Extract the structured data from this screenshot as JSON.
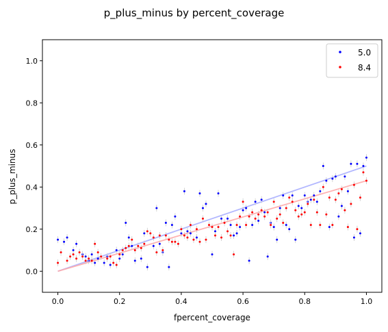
{
  "chart_data": {
    "type": "scatter",
    "title": "p_plus_minus by percent_coverage",
    "xlabel": "fpercent_coverage",
    "ylabel": "p_plus_minus",
    "xlim": [
      -0.05,
      1.05
    ],
    "ylim": [
      -0.1,
      1.1
    ],
    "x_ticks": [
      0.0,
      0.2,
      0.4,
      0.6,
      0.8,
      1.0
    ],
    "x_tick_labels": [
      "0.0",
      "0.2",
      "0.4",
      "0.6",
      "0.8",
      "1.0"
    ],
    "y_ticks": [
      0.0,
      0.2,
      0.4,
      0.6,
      0.8,
      1.0
    ],
    "y_tick_labels": [
      "0.0",
      "0.2",
      "0.4",
      "0.6",
      "0.8",
      "1.0"
    ],
    "legend_position": "top-right",
    "series": [
      {
        "name": "5.0",
        "color": "#0000ff",
        "fit_line": {
          "x": [
            0.0,
            1.0
          ],
          "y": [
            0.0,
            0.5
          ],
          "color": "#aab0ff"
        },
        "x": [
          0.0,
          0.02,
          0.03,
          0.05,
          0.06,
          0.08,
          0.09,
          0.1,
          0.11,
          0.12,
          0.13,
          0.15,
          0.16,
          0.17,
          0.19,
          0.2,
          0.21,
          0.22,
          0.23,
          0.24,
          0.25,
          0.27,
          0.28,
          0.29,
          0.31,
          0.32,
          0.33,
          0.34,
          0.35,
          0.36,
          0.37,
          0.38,
          0.4,
          0.41,
          0.42,
          0.43,
          0.45,
          0.46,
          0.47,
          0.48,
          0.5,
          0.51,
          0.52,
          0.53,
          0.55,
          0.56,
          0.57,
          0.58,
          0.59,
          0.6,
          0.61,
          0.62,
          0.63,
          0.64,
          0.65,
          0.66,
          0.67,
          0.68,
          0.69,
          0.7,
          0.71,
          0.72,
          0.73,
          0.74,
          0.75,
          0.76,
          0.77,
          0.78,
          0.79,
          0.8,
          0.81,
          0.82,
          0.83,
          0.84,
          0.85,
          0.86,
          0.87,
          0.88,
          0.89,
          0.9,
          0.91,
          0.92,
          0.93,
          0.94,
          0.95,
          0.96,
          0.97,
          0.98,
          0.99,
          1.0
        ],
        "y": [
          0.15,
          0.14,
          0.16,
          0.1,
          0.13,
          0.08,
          0.07,
          0.05,
          0.08,
          0.04,
          0.06,
          0.04,
          0.07,
          0.03,
          0.1,
          0.06,
          0.08,
          0.23,
          0.16,
          0.12,
          0.05,
          0.06,
          0.18,
          0.02,
          0.12,
          0.3,
          0.13,
          0.09,
          0.23,
          0.02,
          0.22,
          0.26,
          0.18,
          0.38,
          0.19,
          0.18,
          0.16,
          0.37,
          0.3,
          0.32,
          0.08,
          0.19,
          0.37,
          0.25,
          0.25,
          0.22,
          0.17,
          0.18,
          0.21,
          0.29,
          0.3,
          0.05,
          0.22,
          0.33,
          0.24,
          0.34,
          0.28,
          0.07,
          0.23,
          0.21,
          0.15,
          0.3,
          0.36,
          0.22,
          0.2,
          0.36,
          0.15,
          0.31,
          0.3,
          0.36,
          0.33,
          0.34,
          0.36,
          0.33,
          0.38,
          0.5,
          0.43,
          0.21,
          0.44,
          0.45,
          0.26,
          0.31,
          0.45,
          0.38,
          0.51,
          0.16,
          0.51,
          0.18,
          0.5,
          0.54
        ]
      },
      {
        "name": "8.4",
        "color": "#ff0000",
        "fit_line": {
          "x": [
            0.0,
            1.0
          ],
          "y": [
            0.0,
            0.43
          ],
          "color": "#ffaaaa"
        },
        "x": [
          0.0,
          0.01,
          0.03,
          0.04,
          0.05,
          0.06,
          0.07,
          0.08,
          0.09,
          0.1,
          0.11,
          0.12,
          0.13,
          0.14,
          0.16,
          0.17,
          0.18,
          0.19,
          0.2,
          0.21,
          0.22,
          0.23,
          0.24,
          0.25,
          0.26,
          0.27,
          0.28,
          0.29,
          0.3,
          0.31,
          0.32,
          0.33,
          0.34,
          0.35,
          0.36,
          0.37,
          0.38,
          0.39,
          0.4,
          0.41,
          0.42,
          0.43,
          0.44,
          0.45,
          0.46,
          0.47,
          0.48,
          0.49,
          0.5,
          0.51,
          0.52,
          0.53,
          0.54,
          0.55,
          0.56,
          0.57,
          0.58,
          0.59,
          0.6,
          0.61,
          0.62,
          0.63,
          0.64,
          0.65,
          0.66,
          0.67,
          0.68,
          0.69,
          0.7,
          0.71,
          0.72,
          0.73,
          0.74,
          0.75,
          0.76,
          0.77,
          0.78,
          0.79,
          0.8,
          0.81,
          0.82,
          0.83,
          0.84,
          0.85,
          0.86,
          0.87,
          0.88,
          0.89,
          0.9,
          0.91,
          0.92,
          0.93,
          0.94,
          0.95,
          0.96,
          0.97,
          0.98,
          0.99,
          1.0
        ],
        "y": [
          0.04,
          0.09,
          0.05,
          0.07,
          0.08,
          0.06,
          0.09,
          0.07,
          0.05,
          0.06,
          0.05,
          0.13,
          0.09,
          0.07,
          0.06,
          0.07,
          0.04,
          0.03,
          0.08,
          0.1,
          0.11,
          0.12,
          0.15,
          0.1,
          0.12,
          0.11,
          0.13,
          0.19,
          0.18,
          0.16,
          0.09,
          0.17,
          0.1,
          0.17,
          0.15,
          0.14,
          0.14,
          0.13,
          0.2,
          0.17,
          0.16,
          0.22,
          0.15,
          0.2,
          0.14,
          0.25,
          0.15,
          0.22,
          0.21,
          0.17,
          0.21,
          0.16,
          0.23,
          0.19,
          0.17,
          0.08,
          0.22,
          0.26,
          0.33,
          0.22,
          0.26,
          0.28,
          0.25,
          0.27,
          0.29,
          0.26,
          0.28,
          0.22,
          0.33,
          0.25,
          0.27,
          0.23,
          0.3,
          0.35,
          0.33,
          0.29,
          0.26,
          0.27,
          0.28,
          0.32,
          0.22,
          0.34,
          0.28,
          0.22,
          0.4,
          0.27,
          0.35,
          0.22,
          0.34,
          0.37,
          0.39,
          0.29,
          0.21,
          0.32,
          0.41,
          0.2,
          0.35,
          0.47,
          0.43
        ]
      }
    ]
  }
}
